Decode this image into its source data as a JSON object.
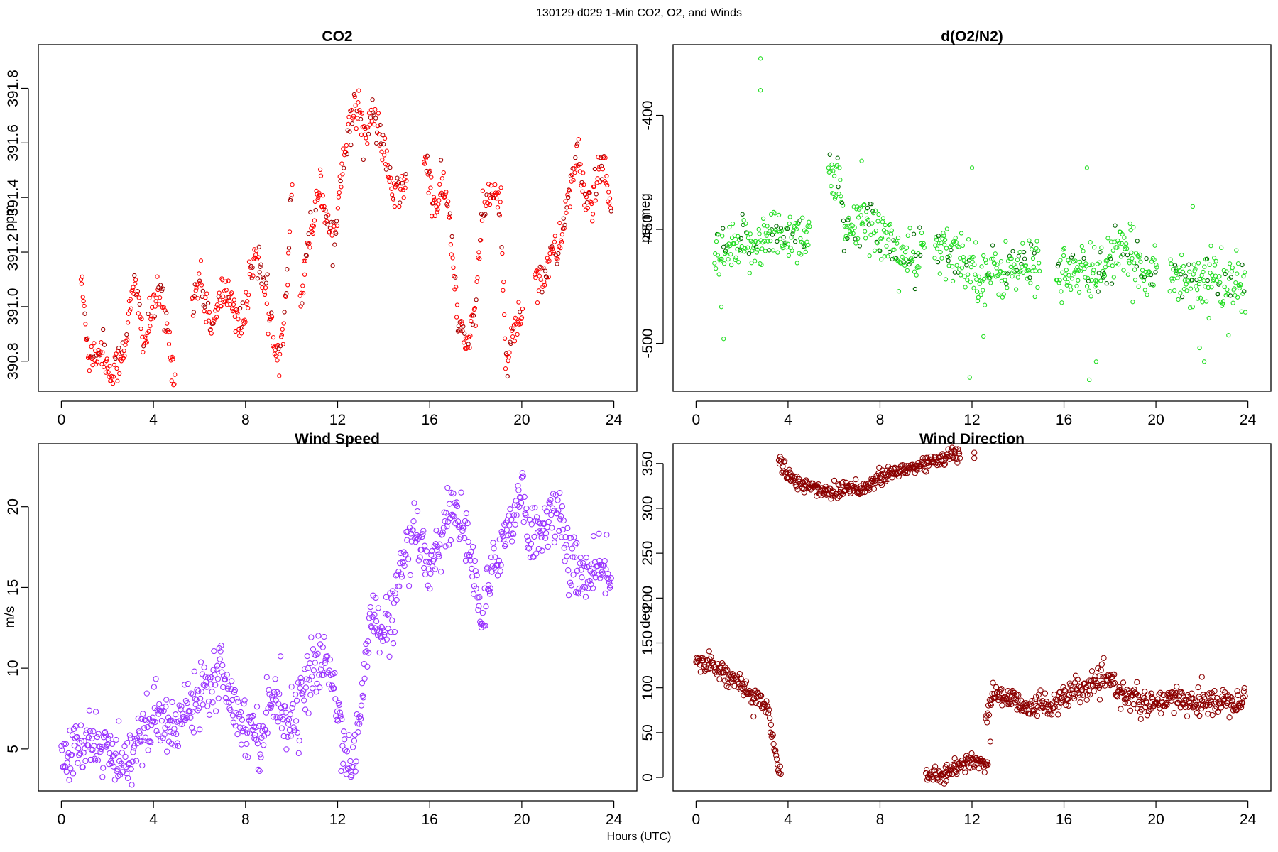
{
  "figure": {
    "title": "130129   d029   1-Min CO2, O2, and Winds",
    "xlabel": "Hours (UTC)"
  },
  "chart_data": [
    {
      "id": "co2",
      "type": "scatter",
      "title": "CO2",
      "xlabel": "",
      "ylabel": "ppm",
      "color": "#ff0000",
      "marker_radius": 2.6,
      "xlim": [
        -1.0,
        25.0
      ],
      "ylim": [
        390.69,
        391.96
      ],
      "xticks": [
        "0",
        "4",
        "8",
        "12",
        "16",
        "20",
        "24"
      ],
      "yticks": [
        "390.8",
        "391.0",
        "391.2",
        "391.4",
        "391.6",
        "391.8"
      ],
      "anchors": [
        [
          0.85,
          391.11
        ],
        [
          1.0,
          390.98
        ],
        [
          1.2,
          390.82
        ],
        [
          1.5,
          390.83
        ],
        [
          1.8,
          390.85
        ],
        [
          2.0,
          390.78
        ],
        [
          2.2,
          390.74
        ],
        [
          2.5,
          390.8
        ],
        [
          2.8,
          390.88
        ],
        [
          3.0,
          391.0
        ],
        [
          3.2,
          391.08
        ],
        [
          3.4,
          390.98
        ],
        [
          3.6,
          390.86
        ],
        [
          4.0,
          391.0
        ],
        [
          4.3,
          391.05
        ],
        [
          4.6,
          390.92
        ],
        [
          4.9,
          390.75
        ],
        [
          5.7,
          391.02
        ],
        [
          6.0,
          391.1
        ],
        [
          6.3,
          391.0
        ],
        [
          6.6,
          390.92
        ],
        [
          7.0,
          391.06
        ],
        [
          7.4,
          391.03
        ],
        [
          7.8,
          390.92
        ],
        [
          8.1,
          391.02
        ],
        [
          8.4,
          391.22
        ],
        [
          8.7,
          391.12
        ],
        [
          9.0,
          390.96
        ],
        [
          9.3,
          390.88
        ],
        [
          9.5,
          390.82
        ],
        [
          9.8,
          391.1
        ],
        [
          10.0,
          391.42
        ],
        [
          10.4,
          391.0
        ],
        [
          10.6,
          391.2
        ],
        [
          10.9,
          391.3
        ],
        [
          11.2,
          391.45
        ],
        [
          11.6,
          391.3
        ],
        [
          11.9,
          391.25
        ],
        [
          12.2,
          391.55
        ],
        [
          12.5,
          391.65
        ],
        [
          12.9,
          391.75
        ],
        [
          13.2,
          391.62
        ],
        [
          13.5,
          391.7
        ],
        [
          13.9,
          391.62
        ],
        [
          14.2,
          391.48
        ],
        [
          14.5,
          391.4
        ],
        [
          14.9,
          391.45
        ],
        [
          15.8,
          391.55
        ],
        [
          16.2,
          391.35
        ],
        [
          16.6,
          391.45
        ],
        [
          16.9,
          391.3
        ],
        [
          17.2,
          390.95
        ],
        [
          17.6,
          390.85
        ],
        [
          18.0,
          391.0
        ],
        [
          18.3,
          391.35
        ],
        [
          18.7,
          391.42
        ],
        [
          19.1,
          391.35
        ],
        [
          19.3,
          390.8
        ],
        [
          19.7,
          390.92
        ],
        [
          20.0,
          390.98
        ],
        [
          20.6,
          391.12
        ],
        [
          20.9,
          391.1
        ],
        [
          21.2,
          391.18
        ],
        [
          21.6,
          391.2
        ],
        [
          22.0,
          391.4
        ],
        [
          22.4,
          391.55
        ],
        [
          22.7,
          391.42
        ],
        [
          23.0,
          391.38
        ],
        [
          23.3,
          391.45
        ],
        [
          23.6,
          391.52
        ],
        [
          23.9,
          391.3
        ]
      ],
      "gaps": [
        [
          4.95,
          5.65
        ],
        [
          10.05,
          10.35
        ],
        [
          15.0,
          15.75
        ],
        [
          20.05,
          20.55
        ]
      ],
      "noise": 0.035,
      "dark_fraction": 0.25,
      "dark_color": "#a30000"
    },
    {
      "id": "o2",
      "type": "scatter",
      "title": "d(O2/N2)",
      "xlabel": "",
      "ylabel": "per meg",
      "color": "#22dd22",
      "marker_radius": 2.6,
      "xlim": [
        -1.0,
        25.0
      ],
      "ylim": [
        -521.0,
        -369.0
      ],
      "xticks": [
        "0",
        "4",
        "8",
        "12",
        "16",
        "20",
        "24"
      ],
      "yticks": [
        "-500",
        "-450",
        "-400"
      ],
      "anchors": [
        [
          0.8,
          -463
        ],
        [
          2.0,
          -458
        ],
        [
          3.5,
          -452
        ],
        [
          4.9,
          -452
        ],
        [
          5.8,
          -425
        ],
        [
          6.2,
          -430
        ],
        [
          6.5,
          -455
        ],
        [
          7.2,
          -445
        ],
        [
          7.8,
          -448
        ],
        [
          8.3,
          -455
        ],
        [
          9.0,
          -462
        ],
        [
          9.6,
          -465
        ],
        [
          9.9,
          -455
        ],
        [
          10.4,
          -460
        ],
        [
          11.5,
          -462
        ],
        [
          12.5,
          -470
        ],
        [
          13.5,
          -468
        ],
        [
          14.9,
          -465
        ],
        [
          15.7,
          -467
        ],
        [
          16.7,
          -470
        ],
        [
          17.5,
          -468
        ],
        [
          18.3,
          -460
        ],
        [
          19.2,
          -465
        ],
        [
          20.0,
          -468
        ],
        [
          20.7,
          -470
        ],
        [
          21.5,
          -472
        ],
        [
          22.5,
          -472
        ],
        [
          23.9,
          -476
        ]
      ],
      "gaps": [
        [
          4.95,
          5.75
        ],
        [
          9.95,
          10.35
        ],
        [
          14.95,
          15.65
        ],
        [
          20.05,
          20.6
        ]
      ],
      "noise": 6,
      "dark_fraction": 0.15,
      "dark_color": "#006600",
      "outliers": [
        [
          2.8,
          -375
        ],
        [
          2.8,
          -389
        ],
        [
          1.2,
          -498
        ],
        [
          1.1,
          -484
        ],
        [
          17.1,
          -516
        ],
        [
          17.0,
          -423
        ],
        [
          17.4,
          -508
        ],
        [
          11.9,
          -515
        ],
        [
          12.5,
          -497
        ],
        [
          21.9,
          -502
        ],
        [
          22.1,
          -508
        ],
        [
          21.6,
          -440
        ],
        [
          12.0,
          -423
        ],
        [
          7.2,
          -420
        ]
      ]
    },
    {
      "id": "wspd",
      "type": "scatter",
      "title": "Wind Speed",
      "xlabel": "",
      "ylabel": "m/s",
      "color": "#9933ff",
      "marker_radius": 3.6,
      "xlim": [
        -1.0,
        25.0
      ],
      "ylim": [
        2.4,
        23.9
      ],
      "xticks": [
        "0",
        "4",
        "8",
        "12",
        "16",
        "20",
        "24"
      ],
      "yticks": [
        "5",
        "10",
        "15",
        "20"
      ],
      "anchors": [
        [
          0,
          4.2
        ],
        [
          0.5,
          4.8
        ],
        [
          1.0,
          5.0
        ],
        [
          1.5,
          5.5
        ],
        [
          2.0,
          5.0
        ],
        [
          2.3,
          4.0
        ],
        [
          2.7,
          3.6
        ],
        [
          3.0,
          5.0
        ],
        [
          3.5,
          6.0
        ],
        [
          4.0,
          7.0
        ],
        [
          4.5,
          6.5
        ],
        [
          5.0,
          6.2
        ],
        [
          5.5,
          8.0
        ],
        [
          6.0,
          8.5
        ],
        [
          6.5,
          9.5
        ],
        [
          7.0,
          10.0
        ],
        [
          7.5,
          8.0
        ],
        [
          7.8,
          6.5
        ],
        [
          8.3,
          6.5
        ],
        [
          8.6,
          5.5
        ],
        [
          9.0,
          7.5
        ],
        [
          9.3,
          8.5
        ],
        [
          9.7,
          7.0
        ],
        [
          10.2,
          7.0
        ],
        [
          10.5,
          8.5
        ],
        [
          11.0,
          10.0
        ],
        [
          11.5,
          10.5
        ],
        [
          11.8,
          9.0
        ],
        [
          12.2,
          6.0
        ],
        [
          12.6,
          3.5
        ],
        [
          12.9,
          6.0
        ],
        [
          13.2,
          10.0
        ],
        [
          13.5,
          14.0
        ],
        [
          13.8,
          12.0
        ],
        [
          14.2,
          12.5
        ],
        [
          14.7,
          15.5
        ],
        [
          15.0,
          17.0
        ],
        [
          15.5,
          18.0
        ],
        [
          16.0,
          16.5
        ],
        [
          16.5,
          18.0
        ],
        [
          17.0,
          20.0
        ],
        [
          17.4,
          19.0
        ],
        [
          17.7,
          17.5
        ],
        [
          18.0,
          15.0
        ],
        [
          18.3,
          13.0
        ],
        [
          18.6,
          15.0
        ],
        [
          19.0,
          17.5
        ],
        [
          19.5,
          19.0
        ],
        [
          20.0,
          21.0
        ],
        [
          20.4,
          18.0
        ],
        [
          20.8,
          18.5
        ],
        [
          21.2,
          19.5
        ],
        [
          21.6,
          19.5
        ],
        [
          22.0,
          17.0
        ],
        [
          22.5,
          16.0
        ],
        [
          23.0,
          15.5
        ],
        [
          23.5,
          16.0
        ],
        [
          23.9,
          16.0
        ]
      ],
      "gaps": [],
      "noise": 0.9,
      "dark_fraction": 0.0,
      "dark_color": "#9933ff"
    },
    {
      "id": "wdir",
      "type": "scatter",
      "title": "Wind Direction",
      "xlabel": "",
      "ylabel": "deg",
      "color": "#8b0000",
      "marker_radius": 3.6,
      "xlim": [
        -1.0,
        25.0
      ],
      "ylim": [
        -15.0,
        372.0
      ],
      "xticks": [
        "0",
        "4",
        "8",
        "12",
        "16",
        "20",
        "24"
      ],
      "yticks": [
        "0",
        "50",
        "100",
        "150",
        "200",
        "250",
        "300",
        "350"
      ],
      "segments": [
        {
          "anchors": [
            [
              0,
              130
            ],
            [
              0.6,
              128
            ],
            [
              1.2,
              118
            ],
            [
              1.8,
              105
            ],
            [
              2.3,
              92
            ],
            [
              2.8,
              88
            ],
            [
              3.0,
              85
            ],
            [
              3.3,
              48
            ],
            [
              3.5,
              22
            ],
            [
              3.7,
              2
            ]
          ],
          "noise": 5
        },
        {
          "anchors": [
            [
              3.6,
              355
            ],
            [
              4.0,
              335
            ],
            [
              4.6,
              328
            ],
            [
              5.2,
              322
            ],
            [
              6.0,
              318
            ],
            [
              6.6,
              325
            ],
            [
              7.2,
              322
            ],
            [
              7.8,
              330
            ],
            [
              8.3,
              338
            ],
            [
              8.8,
              340
            ],
            [
              9.3,
              345
            ],
            [
              9.8,
              348
            ],
            [
              10.4,
              355
            ],
            [
              11.0,
              358
            ],
            [
              11.5,
              360
            ]
          ],
          "noise": 5
        },
        {
          "anchors": [
            [
              10.0,
              3
            ],
            [
              10.5,
              2
            ],
            [
              11.0,
              5
            ],
            [
              11.5,
              14
            ],
            [
              12.0,
              20
            ],
            [
              12.4,
              15
            ],
            [
              12.7,
              15
            ]
          ],
          "noise": 4
        },
        {
          "anchors": [
            [
              12.6,
              70
            ],
            [
              13.0,
              95
            ],
            [
              13.5,
              88
            ],
            [
              14.0,
              85
            ],
            [
              14.5,
              80
            ],
            [
              15.0,
              80
            ],
            [
              15.5,
              82
            ],
            [
              16.0,
              88
            ],
            [
              16.5,
              95
            ],
            [
              17.0,
              100
            ],
            [
              17.5,
              105
            ],
            [
              18.0,
              108
            ],
            [
              18.5,
              95
            ],
            [
              19.0,
              88
            ],
            [
              19.5,
              82
            ],
            [
              20.0,
              80
            ],
            [
              20.5,
              85
            ],
            [
              21.0,
              88
            ],
            [
              21.5,
              85
            ],
            [
              22.0,
              82
            ],
            [
              22.5,
              85
            ],
            [
              23.0,
              86
            ],
            [
              23.5,
              88
            ],
            [
              23.9,
              88
            ]
          ],
          "noise": 7
        }
      ],
      "outliers": [
        [
          12.1,
          362
        ],
        [
          12.1,
          356
        ],
        [
          12.8,
          40
        ],
        [
          22.0,
          112
        ],
        [
          2.5,
          68
        ]
      ],
      "dark_fraction": 0.0,
      "dark_color": "#8b0000"
    }
  ]
}
